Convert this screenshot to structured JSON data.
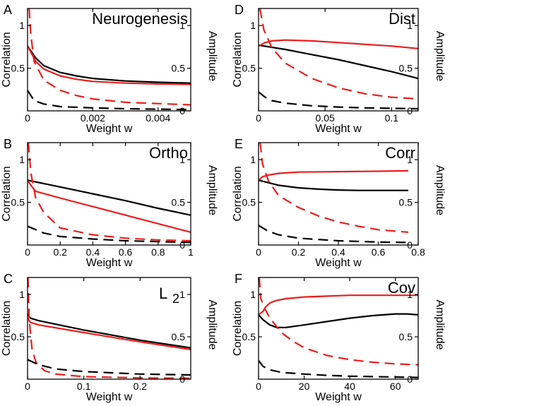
{
  "chart_data": [
    {
      "type": "line",
      "panel_letter": "A",
      "title": "Neurogenesis",
      "xlabel": "Weight w",
      "ylabel_left": "Correlation",
      "ylabel_right": "Amplitude",
      "xlim": [
        0,
        0.005
      ],
      "ylim_left": [
        0,
        1.2
      ],
      "ylim_right": [
        0,
        1.2
      ],
      "x_ticks": [
        0,
        0.002,
        0.004
      ],
      "x_tick_labels": [
        "0",
        "0.002",
        "0.004"
      ],
      "y_ticks_left": [
        0.5,
        1
      ],
      "y_tick_labels_left": [
        "0.5",
        "1"
      ],
      "y_ticks_right": [
        0,
        0.5,
        1
      ],
      "y_tick_labels_right": [
        "0",
        "0.5",
        "1"
      ],
      "series": [
        {
          "name": "black solid",
          "color": "#000000",
          "dash": "solid",
          "x": [
            0,
            0.00025,
            0.0005,
            0.001,
            0.0015,
            0.002,
            0.003,
            0.004,
            0.005
          ],
          "y": [
            0.76,
            0.62,
            0.53,
            0.45,
            0.41,
            0.38,
            0.35,
            0.335,
            0.325
          ]
        },
        {
          "name": "red solid",
          "color": "#ee1c1c",
          "dash": "solid",
          "x": [
            0,
            0.00025,
            0.0005,
            0.001,
            0.0015,
            0.002,
            0.003,
            0.004,
            0.005
          ],
          "y": [
            0.76,
            0.58,
            0.49,
            0.41,
            0.37,
            0.345,
            0.325,
            0.315,
            0.31
          ]
        },
        {
          "name": "red dashed",
          "color": "#ee1c1c",
          "dash": "dashed",
          "x": [
            5e-05,
            0.0001,
            0.0002,
            0.0005,
            0.001,
            0.0015,
            0.002,
            0.003,
            0.004,
            0.005
          ],
          "y": [
            1.2,
            0.9,
            0.58,
            0.36,
            0.24,
            0.18,
            0.14,
            0.1,
            0.085,
            0.07
          ]
        },
        {
          "name": "black dashed",
          "color": "#000000",
          "dash": "dashed",
          "x": [
            0,
            0.0002,
            0.0005,
            0.001,
            0.002,
            0.003,
            0.004,
            0.005
          ],
          "y": [
            0.24,
            0.12,
            0.08,
            0.05,
            0.035,
            0.025,
            0.02,
            0.015
          ]
        }
      ]
    },
    {
      "type": "line",
      "panel_letter": "B",
      "title": "Ortho",
      "xlabel": "Weight w",
      "ylabel_left": "Correlation",
      "ylabel_right": "Amplitude",
      "xlim": [
        0,
        1
      ],
      "ylim_left": [
        0,
        1.2
      ],
      "ylim_right": [
        0,
        1.2
      ],
      "x_ticks": [
        0,
        0.2,
        0.4,
        0.6,
        0.8,
        1
      ],
      "x_tick_labels": [
        "0",
        "0.2",
        "0.4",
        "0.6",
        "0.8",
        "1"
      ],
      "y_ticks_left": [
        0.5,
        1
      ],
      "y_tick_labels_left": [
        "0.5",
        "1"
      ],
      "y_ticks_right": [
        0,
        0.5,
        1
      ],
      "y_tick_labels_right": [
        "0",
        "0.5",
        "1"
      ],
      "series": [
        {
          "name": "black solid",
          "color": "#000000",
          "dash": "solid",
          "x": [
            0,
            0.2,
            0.4,
            0.6,
            0.8,
            1
          ],
          "y": [
            0.76,
            0.68,
            0.6,
            0.52,
            0.43,
            0.35
          ]
        },
        {
          "name": "red solid",
          "color": "#ee1c1c",
          "dash": "solid",
          "x": [
            0,
            0.02,
            0.05,
            0.2,
            0.4,
            0.6,
            0.8,
            1
          ],
          "y": [
            0.76,
            0.7,
            0.63,
            0.55,
            0.45,
            0.35,
            0.25,
            0.15
          ]
        },
        {
          "name": "red dashed",
          "color": "#ee1c1c",
          "dash": "dashed",
          "x": [
            0.005,
            0.02,
            0.05,
            0.1,
            0.2,
            0.4,
            0.6,
            0.8,
            1
          ],
          "y": [
            1.2,
            0.85,
            0.55,
            0.38,
            0.2,
            0.12,
            0.08,
            0.06,
            0.05
          ]
        },
        {
          "name": "black dashed",
          "color": "#000000",
          "dash": "dashed",
          "x": [
            0,
            0.1,
            0.2,
            0.4,
            0.6,
            0.8,
            1
          ],
          "y": [
            0.22,
            0.14,
            0.1,
            0.07,
            0.05,
            0.04,
            0.03
          ]
        }
      ]
    },
    {
      "type": "line",
      "panel_letter": "C",
      "title": "L",
      "title_subscript": "2",
      "xlabel": "Weight w",
      "ylabel_left": "Correlation",
      "ylabel_right": "Amplitude",
      "xlim": [
        0,
        0.29
      ],
      "ylim_left": [
        0,
        1.2
      ],
      "ylim_right": [
        0,
        1.2
      ],
      "x_ticks": [
        0,
        0.1,
        0.2
      ],
      "x_tick_labels": [
        "0",
        "0.1",
        "0.2"
      ],
      "y_ticks_left": [
        0.5,
        1
      ],
      "y_tick_labels_left": [
        "0.5",
        "1"
      ],
      "y_ticks_right": [
        0,
        0.5,
        1
      ],
      "y_tick_labels_right": [
        "0",
        "0.5",
        "1"
      ],
      "series": [
        {
          "name": "black solid",
          "color": "#000000",
          "dash": "solid",
          "x": [
            0,
            0.005,
            0.02,
            0.1,
            0.2,
            0.29
          ],
          "y": [
            0.77,
            0.72,
            0.69,
            0.58,
            0.46,
            0.37
          ]
        },
        {
          "name": "red solid",
          "color": "#ee1c1c",
          "dash": "solid",
          "x": [
            0,
            0.005,
            0.02,
            0.1,
            0.2,
            0.29
          ],
          "y": [
            0.72,
            0.67,
            0.64,
            0.55,
            0.44,
            0.35
          ]
        },
        {
          "name": "red dashed",
          "color": "#ee1c1c",
          "dash": "dashed",
          "x": [
            0.0008,
            0.003,
            0.008,
            0.015,
            0.03,
            0.05,
            0.1,
            0.2,
            0.29
          ],
          "y": [
            1.2,
            0.7,
            0.35,
            0.2,
            0.1,
            0.06,
            0.03,
            0.015,
            0.01
          ]
        },
        {
          "name": "black dashed",
          "color": "#000000",
          "dash": "dashed",
          "x": [
            0,
            0.02,
            0.05,
            0.1,
            0.2,
            0.29
          ],
          "y": [
            0.23,
            0.17,
            0.12,
            0.09,
            0.06,
            0.05
          ]
        }
      ]
    },
    {
      "type": "line",
      "panel_letter": "D",
      "title": "Dist",
      "xlabel": "Weight w",
      "ylabel_left": "Correlation",
      "ylabel_right": "Amplitude",
      "xlim": [
        0,
        0.12
      ],
      "ylim_left": [
        0,
        1.2
      ],
      "ylim_right": [
        0,
        1.2
      ],
      "x_ticks": [
        0,
        0.05,
        0.1
      ],
      "x_tick_labels": [
        "0",
        "0.05",
        "0.1"
      ],
      "y_ticks_left": [
        0.5,
        1
      ],
      "y_tick_labels_left": [
        "0.5",
        "1"
      ],
      "y_ticks_right": [
        0,
        0.5,
        1
      ],
      "y_tick_labels_right": [
        "0",
        "0.5",
        "1"
      ],
      "series": [
        {
          "name": "black solid",
          "color": "#000000",
          "dash": "solid",
          "x": [
            0,
            0.02,
            0.04,
            0.06,
            0.08,
            0.1,
            0.12
          ],
          "y": [
            0.77,
            0.72,
            0.66,
            0.6,
            0.53,
            0.46,
            0.38
          ]
        },
        {
          "name": "red solid",
          "color": "#ee1c1c",
          "dash": "solid",
          "x": [
            0,
            0.005,
            0.01,
            0.02,
            0.04,
            0.06,
            0.08,
            0.1,
            0.12
          ],
          "y": [
            0.76,
            0.8,
            0.82,
            0.83,
            0.82,
            0.8,
            0.78,
            0.76,
            0.73
          ]
        },
        {
          "name": "red dashed",
          "color": "#ee1c1c",
          "dash": "dashed",
          "x": [
            0.001,
            0.004,
            0.01,
            0.02,
            0.04,
            0.06,
            0.08,
            0.1,
            0.12
          ],
          "y": [
            1.2,
            0.95,
            0.74,
            0.56,
            0.38,
            0.27,
            0.2,
            0.16,
            0.14
          ]
        },
        {
          "name": "black dashed",
          "color": "#000000",
          "dash": "dashed",
          "x": [
            0,
            0.005,
            0.01,
            0.02,
            0.04,
            0.06,
            0.08,
            0.1,
            0.12
          ],
          "y": [
            0.22,
            0.16,
            0.12,
            0.09,
            0.06,
            0.045,
            0.035,
            0.03,
            0.025
          ]
        }
      ]
    },
    {
      "type": "line",
      "panel_letter": "E",
      "title": "Corr",
      "xlabel": "Weight w",
      "ylabel_left": "Correlation",
      "ylabel_right": "Amplitude",
      "xlim": [
        0,
        0.8
      ],
      "ylim_left": [
        0,
        1.2
      ],
      "ylim_right": [
        0,
        1.2
      ],
      "x_ticks": [
        0,
        0.2,
        0.4,
        0.6,
        0.8
      ],
      "x_tick_labels": [
        "0",
        "0.2",
        "0.4",
        "0.6",
        "0.8"
      ],
      "y_ticks_left": [
        0.5,
        1
      ],
      "y_tick_labels_left": [
        "0.5",
        "1"
      ],
      "y_ticks_right": [
        0,
        0.5,
        1
      ],
      "y_tick_labels_right": [
        "0",
        "0.5",
        "1"
      ],
      "series": [
        {
          "name": "black solid",
          "color": "#000000",
          "dash": "solid",
          "x": [
            0,
            0.1,
            0.2,
            0.3,
            0.4,
            0.5,
            0.6,
            0.75
          ],
          "y": [
            0.76,
            0.7,
            0.67,
            0.655,
            0.645,
            0.64,
            0.64,
            0.64
          ]
        },
        {
          "name": "red solid",
          "color": "#ee1c1c",
          "dash": "solid",
          "x": [
            0,
            0.02,
            0.05,
            0.1,
            0.2,
            0.4,
            0.6,
            0.75
          ],
          "y": [
            0.76,
            0.8,
            0.82,
            0.84,
            0.855,
            0.86,
            0.865,
            0.87
          ]
        },
        {
          "name": "red dashed",
          "color": "#ee1c1c",
          "dash": "dashed",
          "x": [
            0.008,
            0.02,
            0.05,
            0.1,
            0.2,
            0.3,
            0.4,
            0.5,
            0.6,
            0.75
          ],
          "y": [
            1.2,
            0.95,
            0.75,
            0.58,
            0.44,
            0.34,
            0.27,
            0.22,
            0.18,
            0.15
          ]
        },
        {
          "name": "black dashed",
          "color": "#000000",
          "dash": "dashed",
          "x": [
            0,
            0.05,
            0.1,
            0.2,
            0.4,
            0.6,
            0.75
          ],
          "y": [
            0.23,
            0.16,
            0.12,
            0.08,
            0.05,
            0.035,
            0.03
          ]
        }
      ]
    },
    {
      "type": "line",
      "panel_letter": "F",
      "title": "Cov",
      "xlabel": "Weight w",
      "ylabel_left": "Correlation",
      "ylabel_right": "Amplitude",
      "xlim": [
        0,
        70
      ],
      "ylim_left": [
        0,
        1.2
      ],
      "ylim_right": [
        0,
        1.2
      ],
      "x_ticks": [
        0,
        20,
        40,
        60
      ],
      "x_tick_labels": [
        "0",
        "20",
        "40",
        "60"
      ],
      "y_ticks_left": [
        0.5,
        1
      ],
      "y_tick_labels_left": [
        "0.5",
        "1"
      ],
      "y_ticks_right": [
        0,
        0.5,
        1
      ],
      "y_tick_labels_right": [
        "0",
        "0.5",
        "1"
      ],
      "series": [
        {
          "name": "black solid",
          "color": "#000000",
          "dash": "solid",
          "x": [
            0,
            2,
            5,
            8,
            12,
            20,
            30,
            40,
            50,
            60,
            65,
            70
          ],
          "y": [
            0.76,
            0.7,
            0.64,
            0.61,
            0.61,
            0.64,
            0.68,
            0.72,
            0.75,
            0.77,
            0.77,
            0.76
          ]
        },
        {
          "name": "red solid",
          "color": "#ee1c1c",
          "dash": "solid",
          "x": [
            0,
            2,
            3,
            5,
            8,
            12,
            20,
            30,
            40,
            50,
            60,
            70
          ],
          "y": [
            0.76,
            0.8,
            0.85,
            0.9,
            0.93,
            0.95,
            0.97,
            0.98,
            0.99,
            0.99,
            0.99,
            0.99
          ]
        },
        {
          "name": "red dashed",
          "color": "#ee1c1c",
          "dash": "dashed",
          "x": [
            0.3,
            1,
            3,
            5,
            10,
            15,
            20,
            30,
            40,
            50,
            60,
            70
          ],
          "y": [
            1.2,
            0.95,
            0.82,
            0.72,
            0.55,
            0.45,
            0.37,
            0.28,
            0.23,
            0.2,
            0.18,
            0.17
          ]
        },
        {
          "name": "black dashed",
          "color": "#000000",
          "dash": "dashed",
          "x": [
            0,
            2,
            5,
            10,
            20,
            30,
            40,
            50,
            60,
            70
          ],
          "y": [
            0.22,
            0.15,
            0.11,
            0.08,
            0.06,
            0.045,
            0.035,
            0.03,
            0.025,
            0.02
          ]
        }
      ]
    }
  ]
}
